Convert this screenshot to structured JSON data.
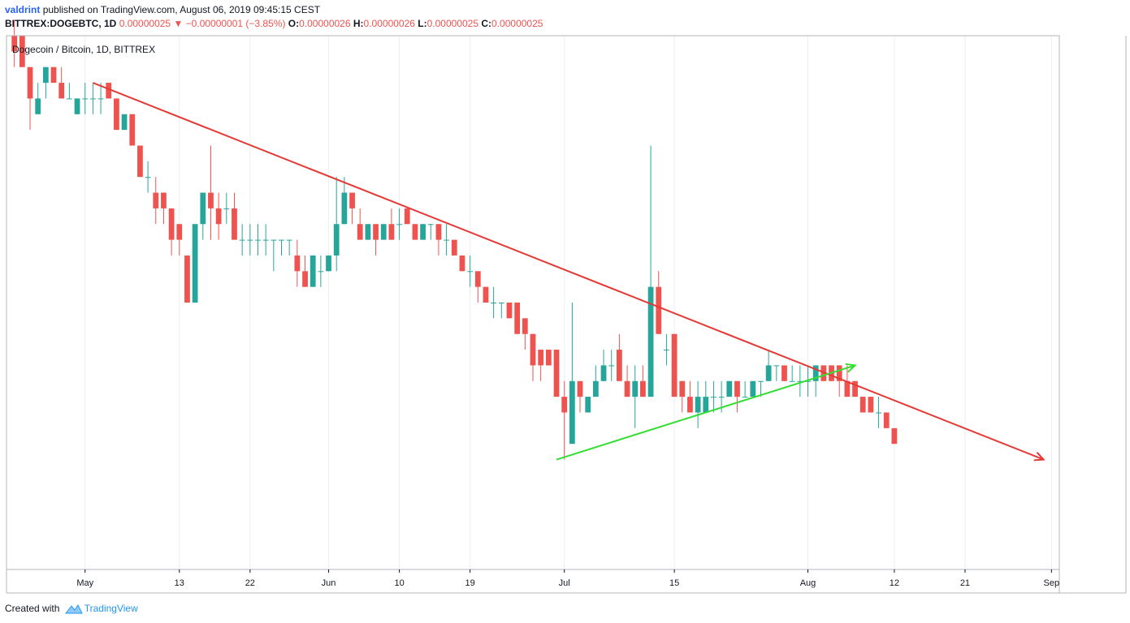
{
  "header": {
    "author": "valdrint",
    "published_text": "published on TradingView.com, August 06, 2019 09:45:15 CEST"
  },
  "ohlc_bar": {
    "symbol_tf": "BITTREX:DOGEBTC, 1D",
    "last": "0.00000025",
    "change": "−0.00000001 (−3.85%)",
    "open_label": "O:",
    "open": "0.00000026",
    "high_label": "H:",
    "high": "0.00000026",
    "low_label": "L:",
    "low": "0.00000025",
    "close_label": "C:",
    "close": "0.00000025"
  },
  "footer": {
    "created_with": "Created with",
    "brand": "TradingView"
  },
  "colors": {
    "up": "#26a69a",
    "down": "#ef5350",
    "resistance": "#e53935",
    "support": "#33dd33",
    "grid": "#e9eff3",
    "axis": "#131722"
  },
  "chart_data": {
    "type": "candlestick",
    "title": "Dogecoin / Bitcoin, 1D, BITTREX",
    "ylim": [
      1.7e-08,
      5.1e-08
    ],
    "y_ticks": [
      "0.00000050",
      "0.00000048",
      "0.00000046",
      "0.00000044",
      "0.00000042",
      "0.00000040",
      "0.00000038",
      "0.00000036",
      "0.00000034",
      "0.00000032",
      "0.00000030",
      "0.00000028",
      "0.00000026",
      "0.00000024",
      "0.00000022",
      "0.00000020",
      "0.00000018"
    ],
    "x_ticks": [
      {
        "label": "May",
        "date": "2019-05-01"
      },
      {
        "label": "13",
        "date": "2019-05-13"
      },
      {
        "label": "22",
        "date": "2019-05-22"
      },
      {
        "label": "Jun",
        "date": "2019-06-01"
      },
      {
        "label": "10",
        "date": "2019-06-10"
      },
      {
        "label": "19",
        "date": "2019-06-19"
      },
      {
        "label": "Jul",
        "date": "2019-07-01"
      },
      {
        "label": "15",
        "date": "2019-07-15"
      },
      {
        "label": "Aug",
        "date": "2019-08-01"
      },
      {
        "label": "12",
        "date": "2019-08-12"
      },
      {
        "label": "21",
        "date": "2019-08-21"
      },
      {
        "label": "Sep",
        "date": "2019-09-01"
      }
    ],
    "x_range": [
      "2019-04-21",
      "2019-09-02"
    ],
    "last_price": "0.00000025",
    "candles": [
      {
        "date": "2019-04-22",
        "o": 5.1e-08,
        "h": 5.2e-08,
        "l": 4.9e-08,
        "c": 5e-08
      },
      {
        "date": "2019-04-23",
        "o": 5.1e-08,
        "h": 5.1e-08,
        "l": 4.9e-08,
        "c": 4.9e-08
      },
      {
        "date": "2019-04-24",
        "o": 4.9e-08,
        "h": 4.9e-08,
        "l": 4.5e-08,
        "c": 4.7e-08
      },
      {
        "date": "2019-04-25",
        "o": 4.6e-08,
        "h": 4.8e-08,
        "l": 4.6e-08,
        "c": 4.7e-08
      },
      {
        "date": "2019-04-26",
        "o": 4.8e-08,
        "h": 4.9e-08,
        "l": 4.7e-08,
        "c": 4.9e-08
      },
      {
        "date": "2019-04-27",
        "o": 4.9e-08,
        "h": 4.9e-08,
        "l": 4.8e-08,
        "c": 4.8e-08
      },
      {
        "date": "2019-04-28",
        "o": 4.8e-08,
        "h": 4.9e-08,
        "l": 4.7e-08,
        "c": 4.7e-08
      },
      {
        "date": "2019-04-29",
        "o": 4.7e-08,
        "h": 4.8e-08,
        "l": 4.7e-08,
        "c": 4.7e-08
      },
      {
        "date": "2019-04-30",
        "o": 4.6e-08,
        "h": 4.7e-08,
        "l": 4.6e-08,
        "c": 4.7e-08
      },
      {
        "date": "2019-05-01",
        "o": 4.7e-08,
        "h": 4.8e-08,
        "l": 4.6e-08,
        "c": 4.7e-08
      },
      {
        "date": "2019-05-02",
        "o": 4.7e-08,
        "h": 4.8e-08,
        "l": 4.6e-08,
        "c": 4.7e-08
      },
      {
        "date": "2019-05-03",
        "o": 4.7e-08,
        "h": 4.8e-08,
        "l": 4.6e-08,
        "c": 4.7e-08
      },
      {
        "date": "2019-05-04",
        "o": 4.8e-08,
        "h": 4.8e-08,
        "l": 4.7e-08,
        "c": 4.7e-08
      },
      {
        "date": "2019-05-05",
        "o": 4.7e-08,
        "h": 4.7e-08,
        "l": 4.5e-08,
        "c": 4.5e-08
      },
      {
        "date": "2019-05-06",
        "o": 4.5e-08,
        "h": 4.6e-08,
        "l": 4.5e-08,
        "c": 4.6e-08
      },
      {
        "date": "2019-05-07",
        "o": 4.6e-08,
        "h": 4.6e-08,
        "l": 4.4e-08,
        "c": 4.4e-08
      },
      {
        "date": "2019-05-08",
        "o": 4.4e-08,
        "h": 4.4e-08,
        "l": 4.2e-08,
        "c": 4.2e-08
      },
      {
        "date": "2019-05-09",
        "o": 4.2e-08,
        "h": 4.3e-08,
        "l": 4.1e-08,
        "c": 4.2e-08
      },
      {
        "date": "2019-05-10",
        "o": 4.1e-08,
        "h": 4.2e-08,
        "l": 3.9e-08,
        "c": 4e-08
      },
      {
        "date": "2019-05-11",
        "o": 4.1e-08,
        "h": 4.1e-08,
        "l": 3.9e-08,
        "c": 4e-08
      },
      {
        "date": "2019-05-12",
        "o": 4e-08,
        "h": 4e-08,
        "l": 3.7e-08,
        "c": 3.8e-08
      },
      {
        "date": "2019-05-13",
        "o": 3.9e-08,
        "h": 3.9e-08,
        "l": 3.7e-08,
        "c": 3.8e-08
      },
      {
        "date": "2019-05-14",
        "o": 3.7e-08,
        "h": 3.7e-08,
        "l": 3.4e-08,
        "c": 3.4e-08
      },
      {
        "date": "2019-05-15",
        "o": 3.4e-08,
        "h": 3.9e-08,
        "l": 3.4e-08,
        "c": 3.9e-08
      },
      {
        "date": "2019-05-16",
        "o": 3.9e-08,
        "h": 4.1e-08,
        "l": 3.8e-08,
        "c": 4.1e-08
      },
      {
        "date": "2019-05-17",
        "o": 4.1e-08,
        "h": 4.4e-08,
        "l": 3.8e-08,
        "c": 4e-08
      },
      {
        "date": "2019-05-18",
        "o": 4e-08,
        "h": 4.1e-08,
        "l": 3.8e-08,
        "c": 3.9e-08
      },
      {
        "date": "2019-05-19",
        "o": 4e-08,
        "h": 4.1e-08,
        "l": 3.9e-08,
        "c": 4e-08
      },
      {
        "date": "2019-05-20",
        "o": 4e-08,
        "h": 4.1e-08,
        "l": 3.8e-08,
        "c": 3.8e-08
      },
      {
        "date": "2019-05-21",
        "o": 3.8e-08,
        "h": 3.9e-08,
        "l": 3.7e-08,
        "c": 3.8e-08
      },
      {
        "date": "2019-05-22",
        "o": 3.8e-08,
        "h": 3.9e-08,
        "l": 3.7e-08,
        "c": 3.8e-08
      },
      {
        "date": "2019-05-23",
        "o": 3.8e-08,
        "h": 3.9e-08,
        "l": 3.7e-08,
        "c": 3.8e-08
      },
      {
        "date": "2019-05-24",
        "o": 3.8e-08,
        "h": 3.9e-08,
        "l": 3.7e-08,
        "c": 3.8e-08
      },
      {
        "date": "2019-05-25",
        "o": 3.8e-08,
        "h": 3.8e-08,
        "l": 3.6e-08,
        "c": 3.8e-08
      },
      {
        "date": "2019-05-26",
        "o": 3.8e-08,
        "h": 3.8e-08,
        "l": 3.7e-08,
        "c": 3.8e-08
      },
      {
        "date": "2019-05-27",
        "o": 3.8e-08,
        "h": 3.8e-08,
        "l": 3.7e-08,
        "c": 3.8e-08
      },
      {
        "date": "2019-05-28",
        "o": 3.7e-08,
        "h": 3.8e-08,
        "l": 3.5e-08,
        "c": 3.6e-08
      },
      {
        "date": "2019-05-29",
        "o": 3.6e-08,
        "h": 3.7e-08,
        "l": 3.5e-08,
        "c": 3.5e-08
      },
      {
        "date": "2019-05-30",
        "o": 3.5e-08,
        "h": 3.7e-08,
        "l": 3.5e-08,
        "c": 3.7e-08
      },
      {
        "date": "2019-05-31",
        "o": 3.6e-08,
        "h": 3.7e-08,
        "l": 3.5e-08,
        "c": 3.6e-08
      },
      {
        "date": "2019-06-01",
        "o": 3.6e-08,
        "h": 3.7e-08,
        "l": 3.6e-08,
        "c": 3.7e-08
      },
      {
        "date": "2019-06-02",
        "o": 3.7e-08,
        "h": 4.2e-08,
        "l": 3.6e-08,
        "c": 3.9e-08
      },
      {
        "date": "2019-06-03",
        "o": 3.9e-08,
        "h": 4.2e-08,
        "l": 3.9e-08,
        "c": 4.1e-08
      },
      {
        "date": "2019-06-04",
        "o": 4.1e-08,
        "h": 4.1e-08,
        "l": 3.9e-08,
        "c": 4e-08
      },
      {
        "date": "2019-06-05",
        "o": 3.9e-08,
        "h": 4e-08,
        "l": 3.8e-08,
        "c": 3.8e-08
      },
      {
        "date": "2019-06-06",
        "o": 3.8e-08,
        "h": 3.9e-08,
        "l": 3.8e-08,
        "c": 3.9e-08
      },
      {
        "date": "2019-06-07",
        "o": 3.9e-08,
        "h": 3.9e-08,
        "l": 3.7e-08,
        "c": 3.8e-08
      },
      {
        "date": "2019-06-08",
        "o": 3.8e-08,
        "h": 3.9e-08,
        "l": 3.8e-08,
        "c": 3.9e-08
      },
      {
        "date": "2019-06-09",
        "o": 3.9e-08,
        "h": 4e-08,
        "l": 3.8e-08,
        "c": 3.8e-08
      },
      {
        "date": "2019-06-10",
        "o": 3.9e-08,
        "h": 4e-08,
        "l": 3.8e-08,
        "c": 3.9e-08
      },
      {
        "date": "2019-06-11",
        "o": 4e-08,
        "h": 4e-08,
        "l": 3.9e-08,
        "c": 3.9e-08
      },
      {
        "date": "2019-06-12",
        "o": 3.9e-08,
        "h": 3.9e-08,
        "l": 3.8e-08,
        "c": 3.8e-08
      },
      {
        "date": "2019-06-13",
        "o": 3.8e-08,
        "h": 3.9e-08,
        "l": 3.8e-08,
        "c": 3.9e-08
      },
      {
        "date": "2019-06-14",
        "o": 3.9e-08,
        "h": 3.9e-08,
        "l": 3.8e-08,
        "c": 3.9e-08
      },
      {
        "date": "2019-06-15",
        "o": 3.9e-08,
        "h": 3.9e-08,
        "l": 3.7e-08,
        "c": 3.8e-08
      },
      {
        "date": "2019-06-16",
        "o": 3.8e-08,
        "h": 3.9e-08,
        "l": 3.7e-08,
        "c": 3.8e-08
      },
      {
        "date": "2019-06-17",
        "o": 3.8e-08,
        "h": 3.8e-08,
        "l": 3.7e-08,
        "c": 3.7e-08
      },
      {
        "date": "2019-06-18",
        "o": 3.7e-08,
        "h": 3.7e-08,
        "l": 3.6e-08,
        "c": 3.6e-08
      },
      {
        "date": "2019-06-19",
        "o": 3.6e-08,
        "h": 3.7e-08,
        "l": 3.5e-08,
        "c": 3.6e-08
      },
      {
        "date": "2019-06-20",
        "o": 3.6e-08,
        "h": 3.6e-08,
        "l": 3.4e-08,
        "c": 3.5e-08
      },
      {
        "date": "2019-06-21",
        "o": 3.5e-08,
        "h": 3.5e-08,
        "l": 3.4e-08,
        "c": 3.4e-08
      },
      {
        "date": "2019-06-22",
        "o": 3.4e-08,
        "h": 3.5e-08,
        "l": 3.3e-08,
        "c": 3.4e-08
      },
      {
        "date": "2019-06-23",
        "o": 3.4e-08,
        "h": 3.4e-08,
        "l": 3.3e-08,
        "c": 3.4e-08
      },
      {
        "date": "2019-06-24",
        "o": 3.4e-08,
        "h": 3.4e-08,
        "l": 3.3e-08,
        "c": 3.3e-08
      },
      {
        "date": "2019-06-25",
        "o": 3.4e-08,
        "h": 3.4e-08,
        "l": 3.2e-08,
        "c": 3.2e-08
      },
      {
        "date": "2019-06-26",
        "o": 3.3e-08,
        "h": 3.3e-08,
        "l": 3.1e-08,
        "c": 3.2e-08
      },
      {
        "date": "2019-06-27",
        "o": 3.2e-08,
        "h": 3.2e-08,
        "l": 2.9e-08,
        "c": 3e-08
      },
      {
        "date": "2019-06-28",
        "o": 3.1e-08,
        "h": 3.1e-08,
        "l": 2.9e-08,
        "c": 3e-08
      },
      {
        "date": "2019-06-29",
        "o": 3.1e-08,
        "h": 3.1e-08,
        "l": 3e-08,
        "c": 3e-08
      },
      {
        "date": "2019-06-30",
        "o": 3.1e-08,
        "h": 3.1e-08,
        "l": 2.8e-08,
        "c": 2.8e-08
      },
      {
        "date": "2019-07-01",
        "o": 2.8e-08,
        "h": 2.9e-08,
        "l": 2.4e-08,
        "c": 2.7e-08
      },
      {
        "date": "2019-07-02",
        "o": 2.5e-08,
        "h": 3.4e-08,
        "l": 2.5e-08,
        "c": 2.9e-08
      },
      {
        "date": "2019-07-03",
        "o": 2.9e-08,
        "h": 2.9e-08,
        "l": 2.7e-08,
        "c": 2.8e-08
      },
      {
        "date": "2019-07-04",
        "o": 2.7e-08,
        "h": 2.8e-08,
        "l": 2.7e-08,
        "c": 2.8e-08
      },
      {
        "date": "2019-07-05",
        "o": 2.8e-08,
        "h": 3e-08,
        "l": 2.8e-08,
        "c": 2.9e-08
      },
      {
        "date": "2019-07-06",
        "o": 2.9e-08,
        "h": 3.1e-08,
        "l": 2.9e-08,
        "c": 3e-08
      },
      {
        "date": "2019-07-07",
        "o": 3e-08,
        "h": 3.1e-08,
        "l": 2.9e-08,
        "c": 3e-08
      },
      {
        "date": "2019-07-08",
        "o": 3.1e-08,
        "h": 3.2e-08,
        "l": 2.9e-08,
        "c": 2.9e-08
      },
      {
        "date": "2019-07-09",
        "o": 2.9e-08,
        "h": 3e-08,
        "l": 2.8e-08,
        "c": 2.8e-08
      },
      {
        "date": "2019-07-10",
        "o": 2.8e-08,
        "h": 3e-08,
        "l": 2.6e-08,
        "c": 2.9e-08
      },
      {
        "date": "2019-07-11",
        "o": 2.9e-08,
        "h": 3e-08,
        "l": 2.8e-08,
        "c": 2.8e-08
      },
      {
        "date": "2019-07-12",
        "o": 2.8e-08,
        "h": 4.4e-08,
        "l": 2.8e-08,
        "c": 3.5e-08
      },
      {
        "date": "2019-07-13",
        "o": 3.5e-08,
        "h": 3.6e-08,
        "l": 3.2e-08,
        "c": 3.2e-08
      },
      {
        "date": "2019-07-14",
        "o": 3.1e-08,
        "h": 3.2e-08,
        "l": 3e-08,
        "c": 3.1e-08
      },
      {
        "date": "2019-07-15",
        "o": 3.2e-08,
        "h": 3.2e-08,
        "l": 2.8e-08,
        "c": 2.8e-08
      },
      {
        "date": "2019-07-16",
        "o": 2.9e-08,
        "h": 2.9e-08,
        "l": 2.7e-08,
        "c": 2.8e-08
      },
      {
        "date": "2019-07-17",
        "o": 2.8e-08,
        "h": 2.9e-08,
        "l": 2.7e-08,
        "c": 2.7e-08
      },
      {
        "date": "2019-07-18",
        "o": 2.7e-08,
        "h": 2.9e-08,
        "l": 2.6e-08,
        "c": 2.8e-08
      },
      {
        "date": "2019-07-19",
        "o": 2.7e-08,
        "h": 2.9e-08,
        "l": 2.7e-08,
        "c": 2.8e-08
      },
      {
        "date": "2019-07-20",
        "o": 2.8e-08,
        "h": 2.9e-08,
        "l": 2.7e-08,
        "c": 2.8e-08
      },
      {
        "date": "2019-07-21",
        "o": 2.8e-08,
        "h": 2.9e-08,
        "l": 2.7e-08,
        "c": 2.8e-08
      },
      {
        "date": "2019-07-22",
        "o": 2.8e-08,
        "h": 2.9e-08,
        "l": 2.8e-08,
        "c": 2.9e-08
      },
      {
        "date": "2019-07-23",
        "o": 2.9e-08,
        "h": 2.9e-08,
        "l": 2.7e-08,
        "c": 2.8e-08
      },
      {
        "date": "2019-07-24",
        "o": 2.8e-08,
        "h": 2.9e-08,
        "l": 2.8e-08,
        "c": 2.8e-08
      },
      {
        "date": "2019-07-25",
        "o": 2.8e-08,
        "h": 2.9e-08,
        "l": 2.8e-08,
        "c": 2.9e-08
      },
      {
        "date": "2019-07-26",
        "o": 2.9e-08,
        "h": 2.9e-08,
        "l": 2.8e-08,
        "c": 2.9e-08
      },
      {
        "date": "2019-07-27",
        "o": 2.9e-08,
        "h": 3.1e-08,
        "l": 2.9e-08,
        "c": 3e-08
      },
      {
        "date": "2019-07-28",
        "o": 3e-08,
        "h": 3e-08,
        "l": 2.9e-08,
        "c": 3e-08
      },
      {
        "date": "2019-07-29",
        "o": 3e-08,
        "h": 3e-08,
        "l": 2.9e-08,
        "c": 2.9e-08
      },
      {
        "date": "2019-07-30",
        "o": 2.9e-08,
        "h": 3e-08,
        "l": 2.9e-08,
        "c": 2.9e-08
      },
      {
        "date": "2019-07-31",
        "o": 2.9e-08,
        "h": 3e-08,
        "l": 2.8e-08,
        "c": 2.9e-08
      },
      {
        "date": "2019-08-01",
        "o": 2.9e-08,
        "h": 3e-08,
        "l": 2.8e-08,
        "c": 2.9e-08
      },
      {
        "date": "2019-08-02",
        "o": 2.9e-08,
        "h": 3e-08,
        "l": 2.8e-08,
        "c": 3e-08
      },
      {
        "date": "2019-08-03",
        "o": 3e-08,
        "h": 3e-08,
        "l": 2.9e-08,
        "c": 2.9e-08
      },
      {
        "date": "2019-08-04",
        "o": 3e-08,
        "h": 3e-08,
        "l": 2.9e-08,
        "c": 2.9e-08
      },
      {
        "date": "2019-08-05",
        "o": 3e-08,
        "h": 3e-08,
        "l": 2.8e-08,
        "c": 2.9e-08
      },
      {
        "date": "2019-08-06",
        "o": 2.9e-08,
        "h": 3e-08,
        "l": 2.8e-08,
        "c": 2.8e-08
      },
      {
        "date": "2019-08-07",
        "o": 2.9e-08,
        "h": 2.9e-08,
        "l": 2.8e-08,
        "c": 2.8e-08
      },
      {
        "date": "2019-08-08",
        "o": 2.8e-08,
        "h": 2.8e-08,
        "l": 2.7e-08,
        "c": 2.7e-08
      },
      {
        "date": "2019-08-09",
        "o": 2.8e-08,
        "h": 2.8e-08,
        "l": 2.7e-08,
        "c": 2.7e-08
      },
      {
        "date": "2019-08-10",
        "o": 2.7e-08,
        "h": 2.8e-08,
        "l": 2.6e-08,
        "c": 2.7e-08
      },
      {
        "date": "2019-08-11",
        "o": 2.7e-08,
        "h": 2.7e-08,
        "l": 2.6e-08,
        "c": 2.6e-08
      },
      {
        "date": "2019-08-12",
        "o": 2.6e-08,
        "h": 2.6e-08,
        "l": 2.5e-08,
        "c": 2.5e-08
      }
    ],
    "trendlines": [
      {
        "name": "descending resistance",
        "color": "#e53935",
        "from": {
          "date": "2019-05-02",
          "value": 4.8e-08
        },
        "to": {
          "date": "2019-08-31",
          "value": 2.4e-08
        }
      },
      {
        "name": "ascending support",
        "color": "#33dd33",
        "from": {
          "date": "2019-06-30",
          "value": 2.4e-08
        },
        "to": {
          "date": "2019-08-07",
          "value": 3e-08
        }
      }
    ]
  }
}
